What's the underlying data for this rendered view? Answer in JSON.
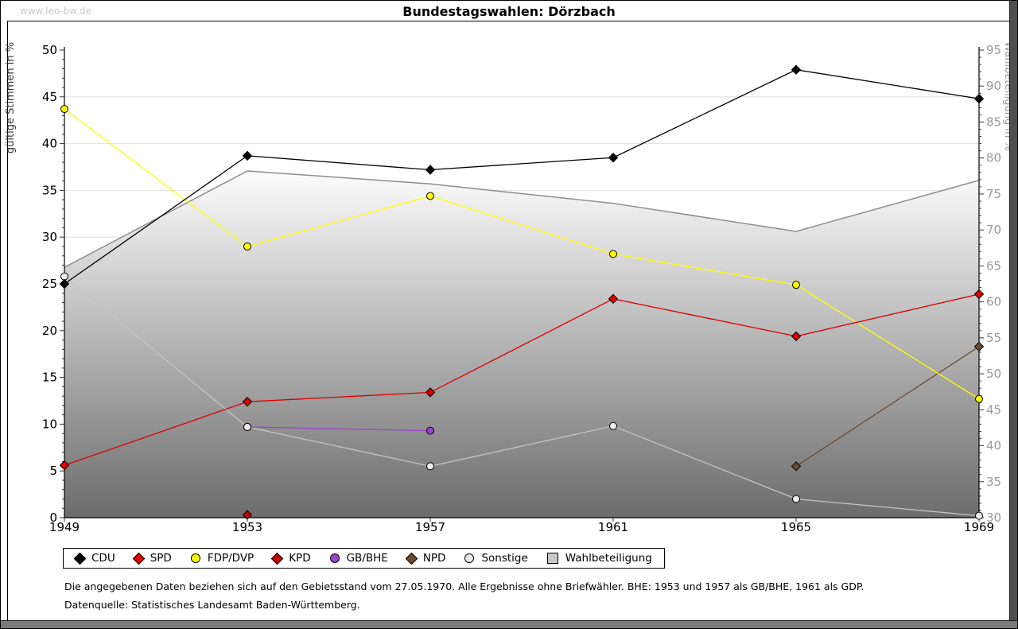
{
  "watermark": "www.leo-bw.de",
  "title": "Bundestagswahlen: Dörzbach",
  "footnotes": [
    "Die angegebenen Daten beziehen sich auf den Gebietsstand vom 27.05.1970. Alle Ergebnisse ohne Briefwähler. BHE: 1953 und 1957 als GB/BHE, 1961 als GDP.",
    "Datenquelle: Statistisches Landesamt Baden-Württemberg."
  ],
  "chart_data": {
    "type": "line",
    "title": "Bundestagswahlen: Dörzbach",
    "x": [
      1949,
      1953,
      1957,
      1961,
      1965,
      1969
    ],
    "left_axis": {
      "label": "gültige Stimmen in %",
      "min": 0,
      "max": 50,
      "tick_step": 5,
      "minor_step": 1
    },
    "right_axis": {
      "label": "Wahlbeteiligung in %",
      "min": 30,
      "max": 95,
      "tick_step": 5,
      "minor_step": 1
    },
    "grid": true,
    "legend_position": "bottom",
    "series": [
      {
        "name": "CDU",
        "axis": "left",
        "marker": "diamond",
        "color": "#000000",
        "marker_fill": "#000000",
        "values": [
          25.0,
          38.7,
          37.2,
          38.5,
          47.9,
          44.8
        ]
      },
      {
        "name": "SPD",
        "axis": "left",
        "marker": "diamond",
        "color": "#dd0000",
        "marker_fill": "#dd0000",
        "values": [
          5.6,
          12.4,
          13.4,
          23.4,
          19.4,
          23.9
        ]
      },
      {
        "name": "FDP/DVP",
        "axis": "left",
        "marker": "circle",
        "color": "#ffff00",
        "marker_fill": "#ffff00",
        "values": [
          43.7,
          29.0,
          34.4,
          28.2,
          24.9,
          12.7
        ]
      },
      {
        "name": "KPD",
        "axis": "left",
        "marker": "diamond",
        "color": "#c00000",
        "marker_fill": "#c00000",
        "values": [
          null,
          0.3,
          null,
          null,
          null,
          null
        ]
      },
      {
        "name": "GB/BHE",
        "axis": "left",
        "marker": "circle",
        "color": "#9944cc",
        "marker_fill": "#9944cc",
        "values": [
          null,
          9.7,
          9.3,
          null,
          null,
          null
        ]
      },
      {
        "name": "NPD",
        "axis": "left",
        "marker": "diamond",
        "color": "#6b4a33",
        "marker_fill": "#6b4a33",
        "values": [
          null,
          null,
          null,
          null,
          5.5,
          18.3
        ]
      },
      {
        "name": "Sonstige",
        "axis": "left",
        "marker": "circle",
        "color": "#c4c4c4",
        "marker_fill": "#ececec",
        "values": [
          25.8,
          9.7,
          5.5,
          9.8,
          2.0,
          0.2
        ]
      },
      {
        "name": "Wahlbeteiligung",
        "axis": "right",
        "type": "area",
        "marker": "square",
        "color": "#8d8d8d",
        "legend_fill": "#c9c9c9",
        "area_gradient": [
          "#fcfcfc",
          "#6c6c6c"
        ],
        "values": [
          64.8,
          78.2,
          76.4,
          73.7,
          69.8,
          76.9
        ]
      }
    ]
  }
}
